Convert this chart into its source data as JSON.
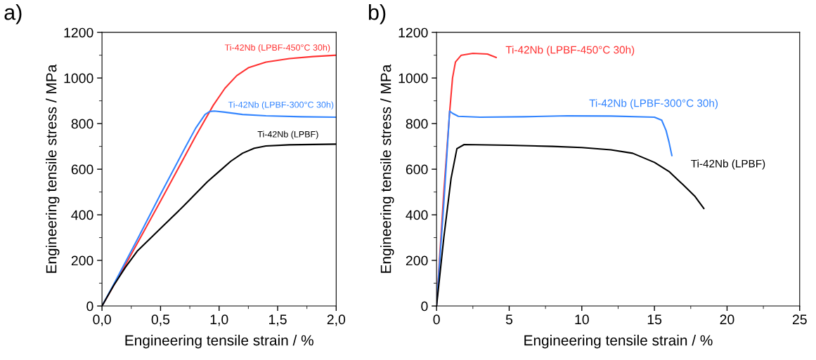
{
  "chart_data": [
    {
      "type": "line",
      "title": "a)",
      "xlabel": "Engineering tensile strain / %",
      "ylabel": "Engineering tensile stress / MPa",
      "xlim": [
        0,
        2
      ],
      "ylim": [
        0,
        1200
      ],
      "xticks": [
        {
          "value": 0,
          "label": "0,0"
        },
        {
          "value": 0.5,
          "label": "0,5"
        },
        {
          "value": 1,
          "label": "1,0"
        },
        {
          "value": 1.5,
          "label": "1,5"
        },
        {
          "value": 2,
          "label": "2,0"
        }
      ],
      "yticks": [
        0,
        200,
        400,
        600,
        800,
        1000,
        1200
      ],
      "grid": false,
      "legend": false,
      "marker": "none",
      "line_style": "solid",
      "series": [
        {
          "name": "Ti-42Nb (LPBF-450°C 30h)",
          "color": "#ff3333",
          "x": [
            0,
            0.2,
            0.5,
            0.8,
            0.95,
            1.05,
            1.15,
            1.25,
            1.4,
            1.6,
            1.8,
            2.0
          ],
          "values": [
            0,
            180,
            460,
            745,
            880,
            955,
            1010,
            1045,
            1070,
            1085,
            1094,
            1100
          ]
        },
        {
          "name": "Ti-42Nb (LPBF-300°C 30h)",
          "color": "#3385ff",
          "x": [
            0,
            0.1,
            0.3,
            0.5,
            0.7,
            0.8,
            0.88,
            0.92,
            0.96,
            1.05,
            1.2,
            1.4,
            1.7,
            2.0
          ],
          "values": [
            0,
            95,
            290,
            490,
            685,
            780,
            840,
            853,
            855,
            850,
            840,
            834,
            830,
            828
          ]
        },
        {
          "name": "Ti-42Nb (LPBF)",
          "color": "#000000",
          "x": [
            0,
            0.1,
            0.2,
            0.3,
            0.5,
            0.7,
            0.9,
            1.0,
            1.1,
            1.2,
            1.3,
            1.4,
            1.6,
            2.0
          ],
          "values": [
            0,
            90,
            170,
            240,
            340,
            440,
            545,
            590,
            635,
            670,
            692,
            702,
            707,
            710
          ]
        }
      ]
    },
    {
      "type": "line",
      "title": "b)",
      "xlabel": "Engineering tensile strain / %",
      "ylabel": "Engineering tensile stress / MPa",
      "xlim": [
        0,
        25
      ],
      "ylim": [
        0,
        1200
      ],
      "xticks": [
        0,
        5,
        10,
        15,
        20,
        25
      ],
      "yticks": [
        0,
        200,
        400,
        600,
        800,
        1000,
        1200
      ],
      "grid": false,
      "legend": false,
      "marker": "none",
      "line_style": "solid",
      "series": [
        {
          "name": "Ti-42Nb (LPBF-450°C 30h)",
          "color": "#ff3333",
          "x": [
            0,
            0.5,
            0.9,
            1.1,
            1.3,
            1.7,
            2.5,
            3.5,
            4.1
          ],
          "values": [
            0,
            500,
            850,
            1000,
            1070,
            1100,
            1108,
            1105,
            1090
          ]
        },
        {
          "name": "Ti-42Nb (LPBF-300°C 30h)",
          "color": "#3385ff",
          "x": [
            0,
            0.5,
            0.9,
            1.1,
            1.5,
            3,
            6,
            9,
            12,
            15,
            15.5,
            15.8,
            16.0,
            16.2
          ],
          "values": [
            0,
            450,
            855,
            845,
            832,
            828,
            830,
            834,
            833,
            828,
            815,
            770,
            720,
            660
          ]
        },
        {
          "name": "Ti-42Nb (LPBF)",
          "color": "#000000",
          "x": [
            0,
            0.5,
            1.0,
            1.4,
            1.9,
            5,
            8,
            10,
            12,
            13.5,
            15,
            16,
            17,
            17.8,
            18.4
          ],
          "values": [
            0,
            300,
            560,
            690,
            708,
            705,
            700,
            695,
            685,
            670,
            630,
            590,
            530,
            480,
            428
          ]
        }
      ]
    }
  ]
}
